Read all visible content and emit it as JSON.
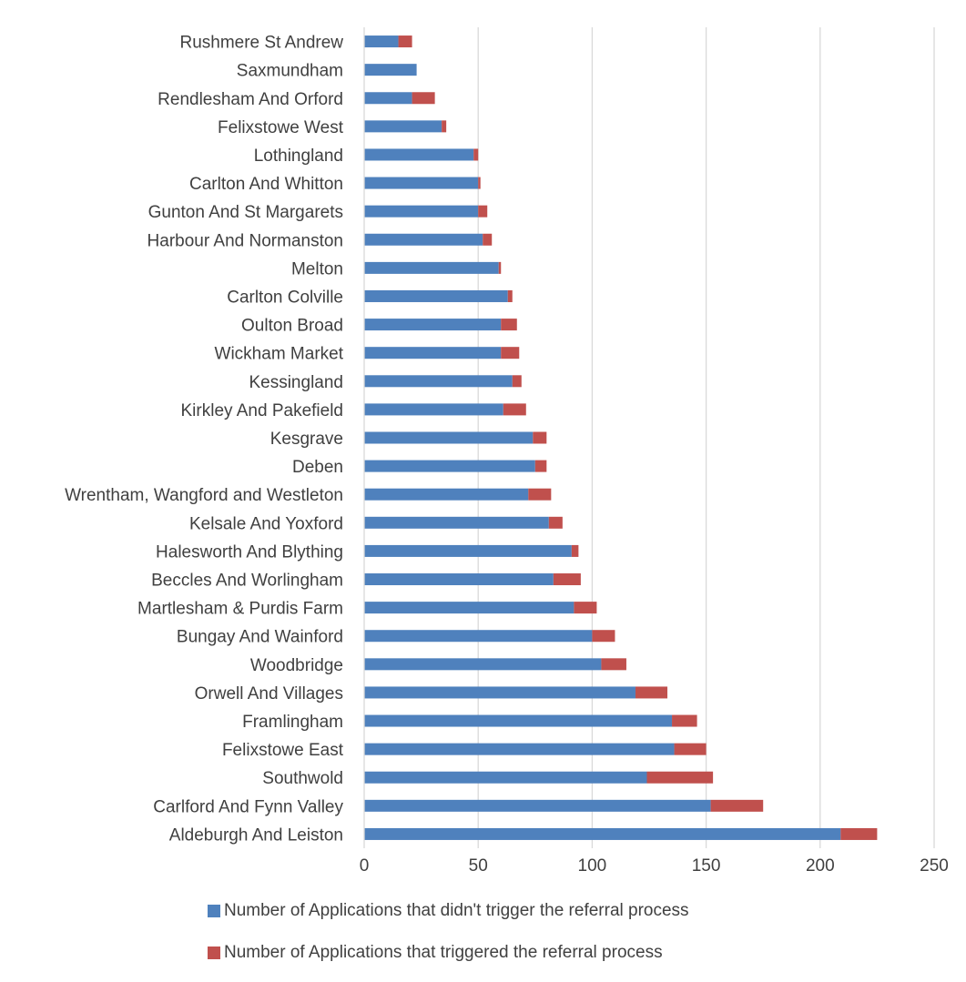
{
  "chart_data": {
    "type": "bar",
    "orientation": "horizontal",
    "stacked": true,
    "categories": [
      "Rushmere St Andrew",
      "Saxmundham",
      "Rendlesham And Orford",
      "Felixstowe West",
      "Lothingland",
      "Carlton And Whitton",
      "Gunton And St Margarets",
      "Harbour And Normanston",
      "Melton",
      "Carlton Colville",
      "Oulton Broad",
      "Wickham Market",
      "Kessingland",
      "Kirkley And Pakefield",
      "Kesgrave",
      "Deben",
      "Wrentham, Wangford and Westleton",
      "Kelsale And Yoxford",
      "Halesworth And Blything",
      "Beccles And Worlingham",
      "Martlesham & Purdis Farm",
      "Bungay And Wainford",
      "Woodbridge",
      "Orwell And Villages",
      "Framlingham",
      "Felixstowe East",
      "Southwold",
      "Carlford And Fynn Valley",
      "Aldeburgh And Leiston"
    ],
    "series": [
      {
        "name": "Number of Applications that didn't trigger the referral process",
        "color": "#4F81BD",
        "values": [
          15,
          23,
          21,
          34,
          48,
          50,
          50,
          52,
          59,
          63,
          60,
          60,
          65,
          61,
          74,
          75,
          72,
          81,
          91,
          83,
          92,
          100,
          104,
          119,
          135,
          136,
          124,
          152,
          209
        ]
      },
      {
        "name": "Number of Applications that triggered the referral process",
        "color": "#C0504D",
        "values": [
          6,
          0,
          10,
          2,
          2,
          1,
          4,
          4,
          1,
          2,
          7,
          8,
          4,
          10,
          6,
          5,
          10,
          6,
          3,
          12,
          10,
          10,
          11,
          14,
          11,
          14,
          29,
          23,
          16
        ]
      }
    ],
    "xlim": [
      0,
      250
    ],
    "xticks": [
      "0",
      "50",
      "100",
      "150",
      "200",
      "250"
    ],
    "grid": true,
    "legend_position": "bottom"
  }
}
